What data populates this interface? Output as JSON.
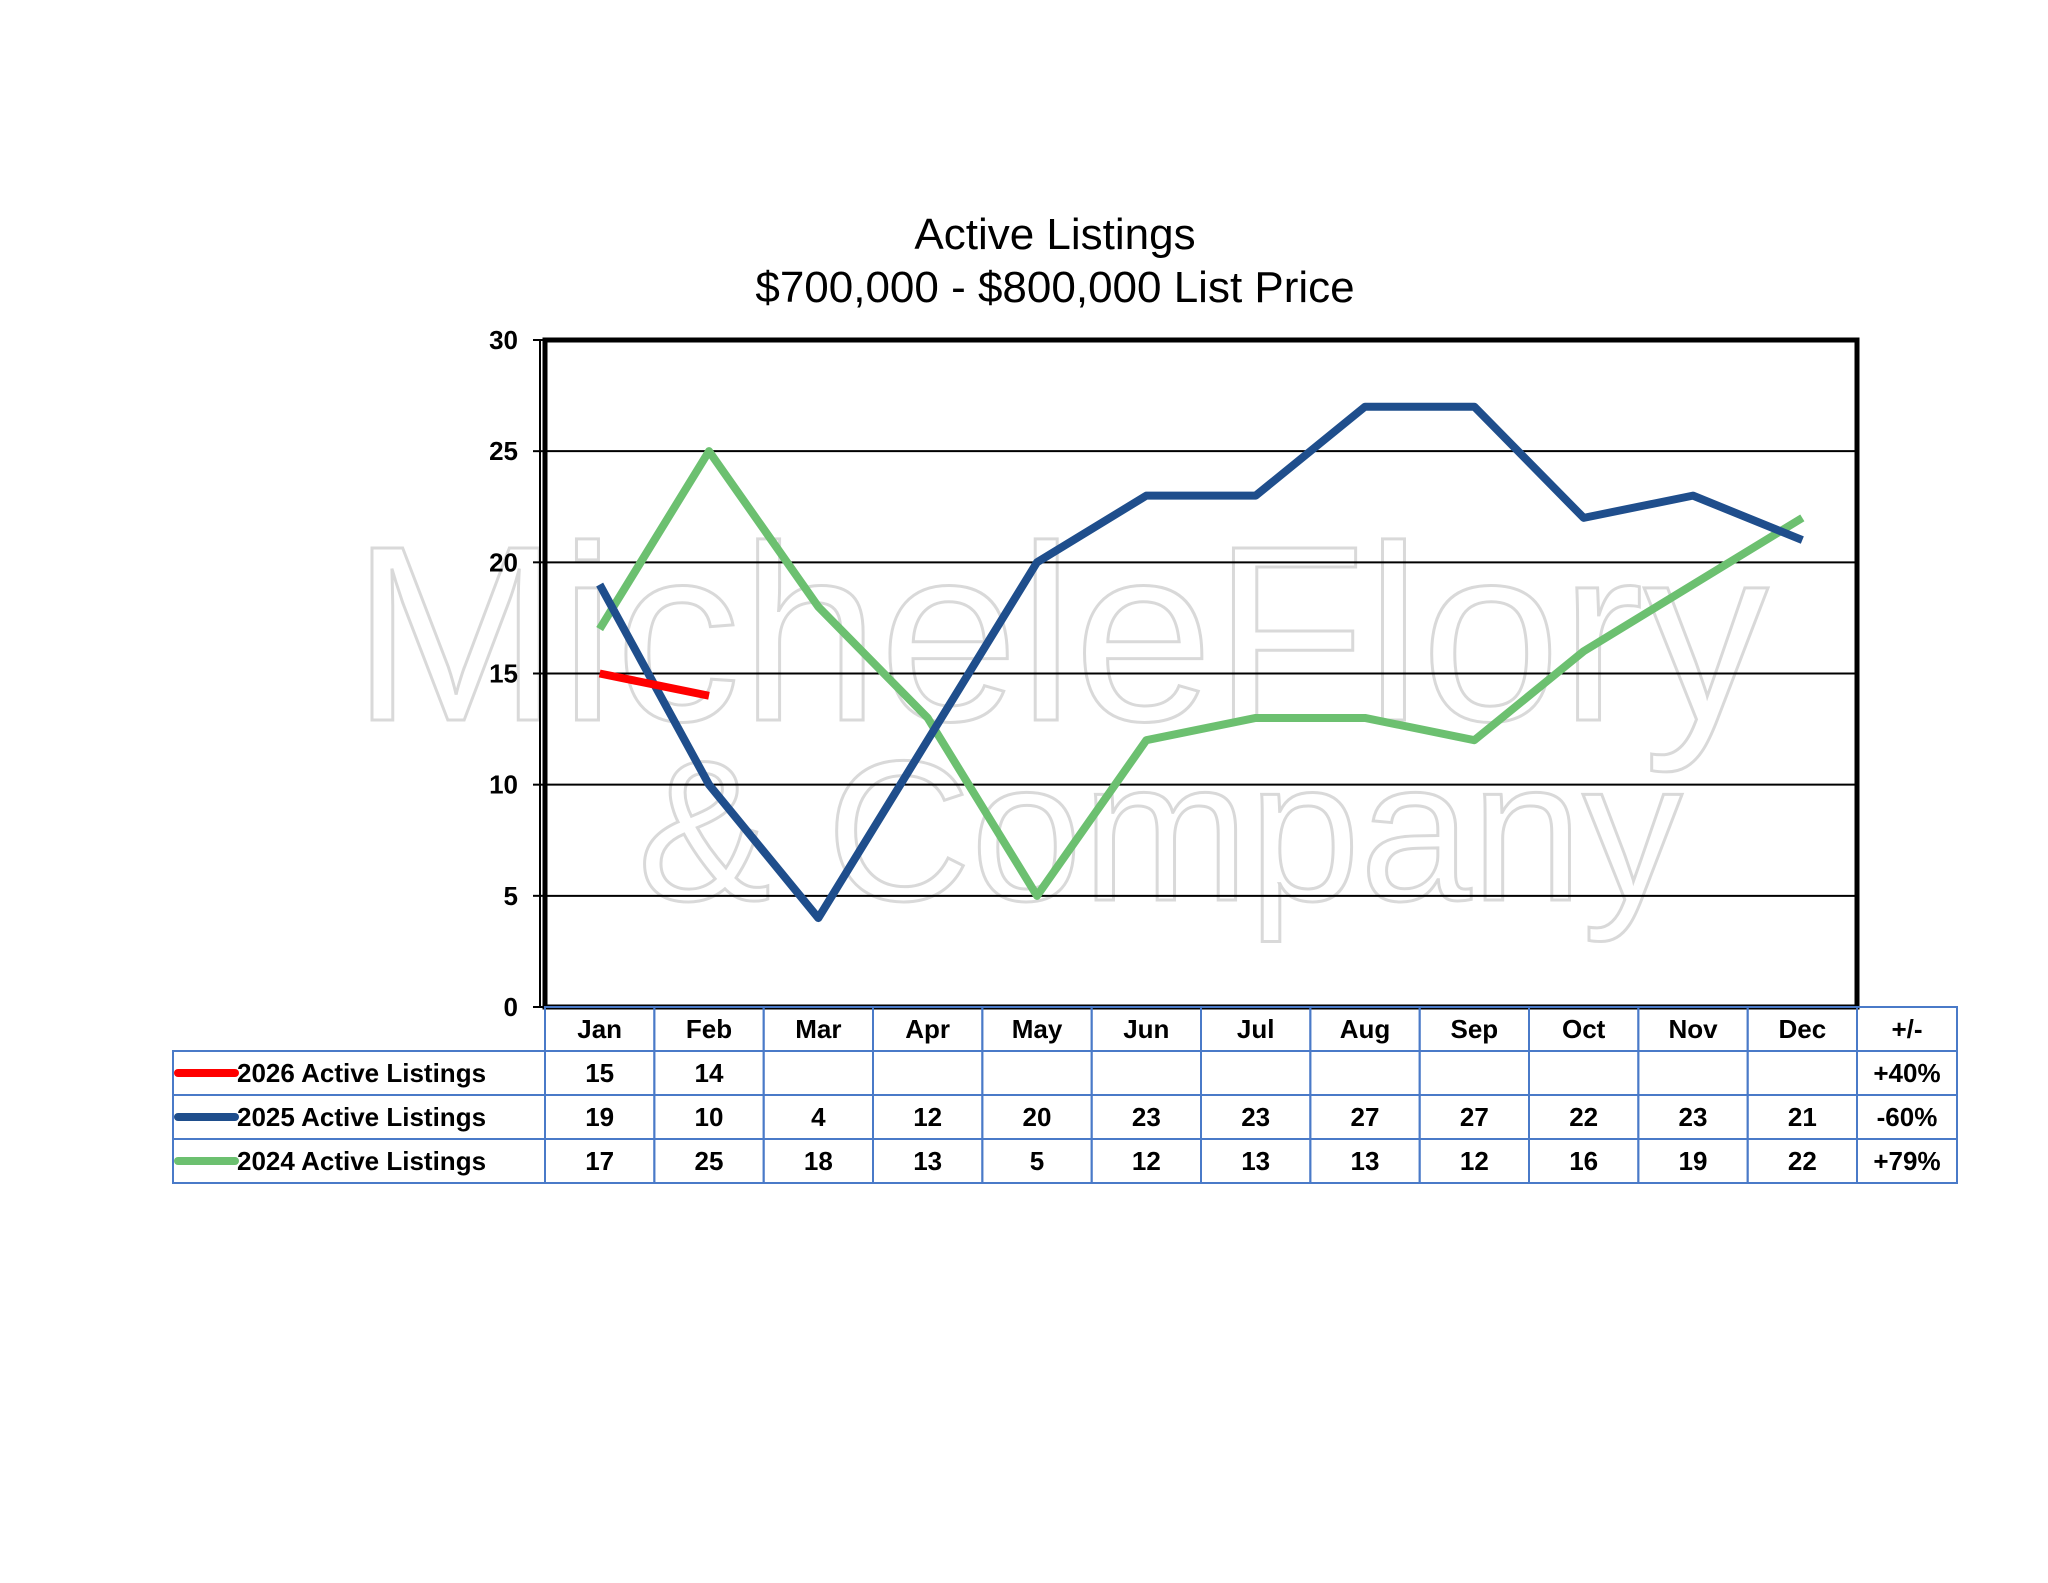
{
  "chart_data": {
    "type": "line",
    "title": "Active Listings",
    "subtitle": "$700,000 - $800,000 List Price",
    "categories": [
      "Jan",
      "Feb",
      "Mar",
      "Apr",
      "May",
      "Jun",
      "Jul",
      "Aug",
      "Sep",
      "Oct",
      "Nov",
      "Dec"
    ],
    "change_header": "+/-",
    "ylim": [
      0,
      30
    ],
    "yticks": [
      "0",
      "5",
      "10",
      "15",
      "20",
      "25",
      "30"
    ],
    "grid": true,
    "series": [
      {
        "name": "2026 Active Listings",
        "color": "#ff0000",
        "values": [
          15,
          14,
          null,
          null,
          null,
          null,
          null,
          null,
          null,
          null,
          null,
          null
        ],
        "change": "+40%"
      },
      {
        "name": "2025 Active Listings",
        "color": "#1f4e8c",
        "values": [
          19,
          10,
          4,
          12,
          20,
          23,
          23,
          27,
          27,
          22,
          23,
          21
        ],
        "change": "-60%"
      },
      {
        "name": "2024 Active Listings",
        "color": "#6cc070",
        "values": [
          17,
          25,
          18,
          13,
          5,
          12,
          13,
          13,
          12,
          16,
          19,
          22
        ],
        "change": "+79%"
      }
    ]
  },
  "watermark": {
    "line1": "MicheleFlory",
    "line2": "& Company",
    "color": "#d9d9d9"
  }
}
